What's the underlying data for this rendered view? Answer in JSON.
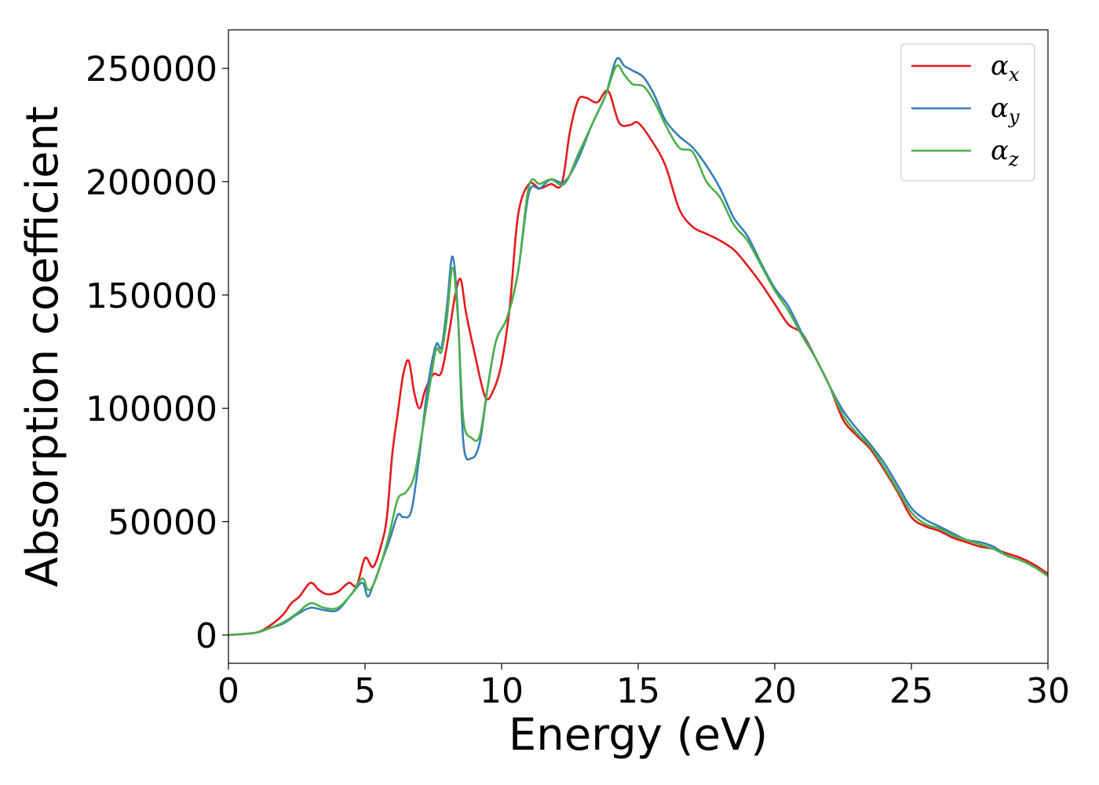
{
  "chart_data": {
    "type": "line",
    "title": "",
    "xlabel": "Energy (eV)",
    "ylabel": "Absorption coefficient",
    "xlim": [
      0,
      30
    ],
    "ylim": [
      -12500,
      267000
    ],
    "xticks": [
      0,
      5,
      10,
      15,
      20,
      25,
      30
    ],
    "yticks": [
      0,
      50000,
      100000,
      150000,
      200000,
      250000
    ],
    "grid": false,
    "legend_position": "top-right",
    "series": [
      {
        "name": "α",
        "subscript": "x",
        "color": "#e41a1c",
        "x": [
          0,
          1,
          1.5,
          2,
          2.3,
          2.6,
          3,
          3.3,
          3.6,
          4,
          4.4,
          4.7,
          5,
          5.3,
          5.6,
          5.8,
          6,
          6.2,
          6.4,
          6.6,
          6.8,
          7,
          7.2,
          7.5,
          7.8,
          8.1,
          8.3,
          8.5,
          8.7,
          9,
          9.4,
          9.7,
          10,
          10.3,
          10.6,
          11,
          11.4,
          11.8,
          12.2,
          12.5,
          12.8,
          13.1,
          13.5,
          13.9,
          14.3,
          14.7,
          15,
          15.5,
          16,
          16.5,
          17,
          17.5,
          18,
          18.5,
          19,
          19.5,
          20,
          20.5,
          21,
          21.5,
          22,
          22.5,
          23,
          23.5,
          24,
          24.5,
          25,
          25.5,
          26,
          26.5,
          27,
          27.5,
          28,
          28.5,
          29,
          29.5,
          30
        ],
        "y": [
          0,
          1000,
          4000,
          9000,
          14000,
          17000,
          23000,
          20000,
          18000,
          19000,
          23000,
          22000,
          34000,
          30000,
          40000,
          52000,
          80000,
          98000,
          115000,
          121000,
          107000,
          100000,
          108000,
          115000,
          116000,
          135000,
          150000,
          157000,
          142000,
          125000,
          105000,
          108000,
          120000,
          145000,
          185000,
          199000,
          197000,
          199000,
          199000,
          222000,
          236000,
          237000,
          235000,
          240000,
          226000,
          225000,
          226000,
          218000,
          207000,
          188000,
          180000,
          177000,
          174000,
          170000,
          163000,
          155000,
          146000,
          137000,
          133000,
          122000,
          110000,
          95000,
          88000,
          82000,
          73000,
          63000,
          52000,
          48000,
          46000,
          43000,
          41000,
          39000,
          38000,
          36000,
          34000,
          31000,
          27000
        ]
      },
      {
        "name": "α",
        "subscript": "y",
        "color": "#377eb8",
        "x": [
          0,
          1,
          1.5,
          2,
          2.5,
          3,
          3.5,
          4,
          4.5,
          4.9,
          5.1,
          5.3,
          5.6,
          5.9,
          6.2,
          6.4,
          6.7,
          7,
          7.3,
          7.6,
          7.8,
          8,
          8.2,
          8.4,
          8.6,
          8.9,
          9.2,
          9.5,
          9.8,
          10.2,
          10.6,
          11,
          11.4,
          11.8,
          12.3,
          12.8,
          13.3,
          13.8,
          14.2,
          14.5,
          14.8,
          15.2,
          15.6,
          16,
          16.5,
          17,
          17.5,
          18,
          18.5,
          19,
          19.5,
          20,
          20.5,
          21,
          21.5,
          22,
          22.5,
          23,
          23.5,
          24,
          24.5,
          25,
          25.5,
          26,
          26.5,
          27,
          27.5,
          28,
          28.5,
          29,
          29.5,
          30
        ],
        "y": [
          0,
          1000,
          3000,
          5000,
          9000,
          12000,
          11000,
          11000,
          18000,
          23000,
          17000,
          22000,
          32000,
          42000,
          53000,
          52000,
          55000,
          80000,
          110000,
          128000,
          127000,
          145000,
          167000,
          142000,
          85000,
          78000,
          85000,
          110000,
          130000,
          140000,
          160000,
          195000,
          197000,
          201000,
          200000,
          210000,
          225000,
          238000,
          254000,
          251000,
          249000,
          246000,
          238000,
          227000,
          220000,
          215000,
          207000,
          197000,
          184000,
          176000,
          164000,
          153000,
          145000,
          133000,
          122000,
          110000,
          99000,
          91000,
          84000,
          76000,
          66000,
          56000,
          51000,
          48000,
          45000,
          42000,
          41000,
          39000,
          35000,
          33000,
          30000,
          26000
        ]
      },
      {
        "name": "α",
        "subscript": "z",
        "color": "#4daf4a",
        "x": [
          0,
          1,
          1.5,
          2,
          2.5,
          3,
          3.5,
          4,
          4.5,
          4.9,
          5.1,
          5.3,
          5.6,
          5.9,
          6.2,
          6.5,
          6.8,
          7.1,
          7.4,
          7.6,
          7.8,
          8,
          8.2,
          8.4,
          8.6,
          8.9,
          9.2,
          9.5,
          9.8,
          10.2,
          10.6,
          11,
          11.4,
          11.8,
          12.3,
          12.8,
          13.3,
          13.8,
          14.2,
          14.5,
          14.8,
          15.2,
          15.6,
          16,
          16.5,
          17,
          17.5,
          18,
          18.5,
          19,
          19.5,
          20,
          20.5,
          21,
          21.5,
          22,
          22.5,
          23,
          23.5,
          24,
          24.5,
          25,
          25.5,
          26,
          26.5,
          27,
          27.5,
          28,
          28.5,
          29,
          29.5,
          30
        ],
        "y": [
          0,
          1000,
          3000,
          5500,
          9500,
          14000,
          12000,
          12000,
          18000,
          25000,
          20000,
          22000,
          32000,
          45000,
          60000,
          63000,
          70000,
          90000,
          112000,
          126000,
          125000,
          140000,
          162000,
          140000,
          95000,
          87000,
          88000,
          110000,
          130000,
          140000,
          160000,
          198000,
          199000,
          201000,
          199000,
          212000,
          225000,
          238000,
          251000,
          247000,
          243000,
          242000,
          235000,
          225000,
          215000,
          213000,
          200000,
          193000,
          181000,
          174000,
          163000,
          152000,
          143000,
          132000,
          122000,
          110000,
          97000,
          89000,
          83000,
          74000,
          64000,
          54000,
          49000,
          47000,
          44000,
          42000,
          40000,
          38000,
          35000,
          33000,
          30000,
          26000
        ]
      }
    ]
  }
}
